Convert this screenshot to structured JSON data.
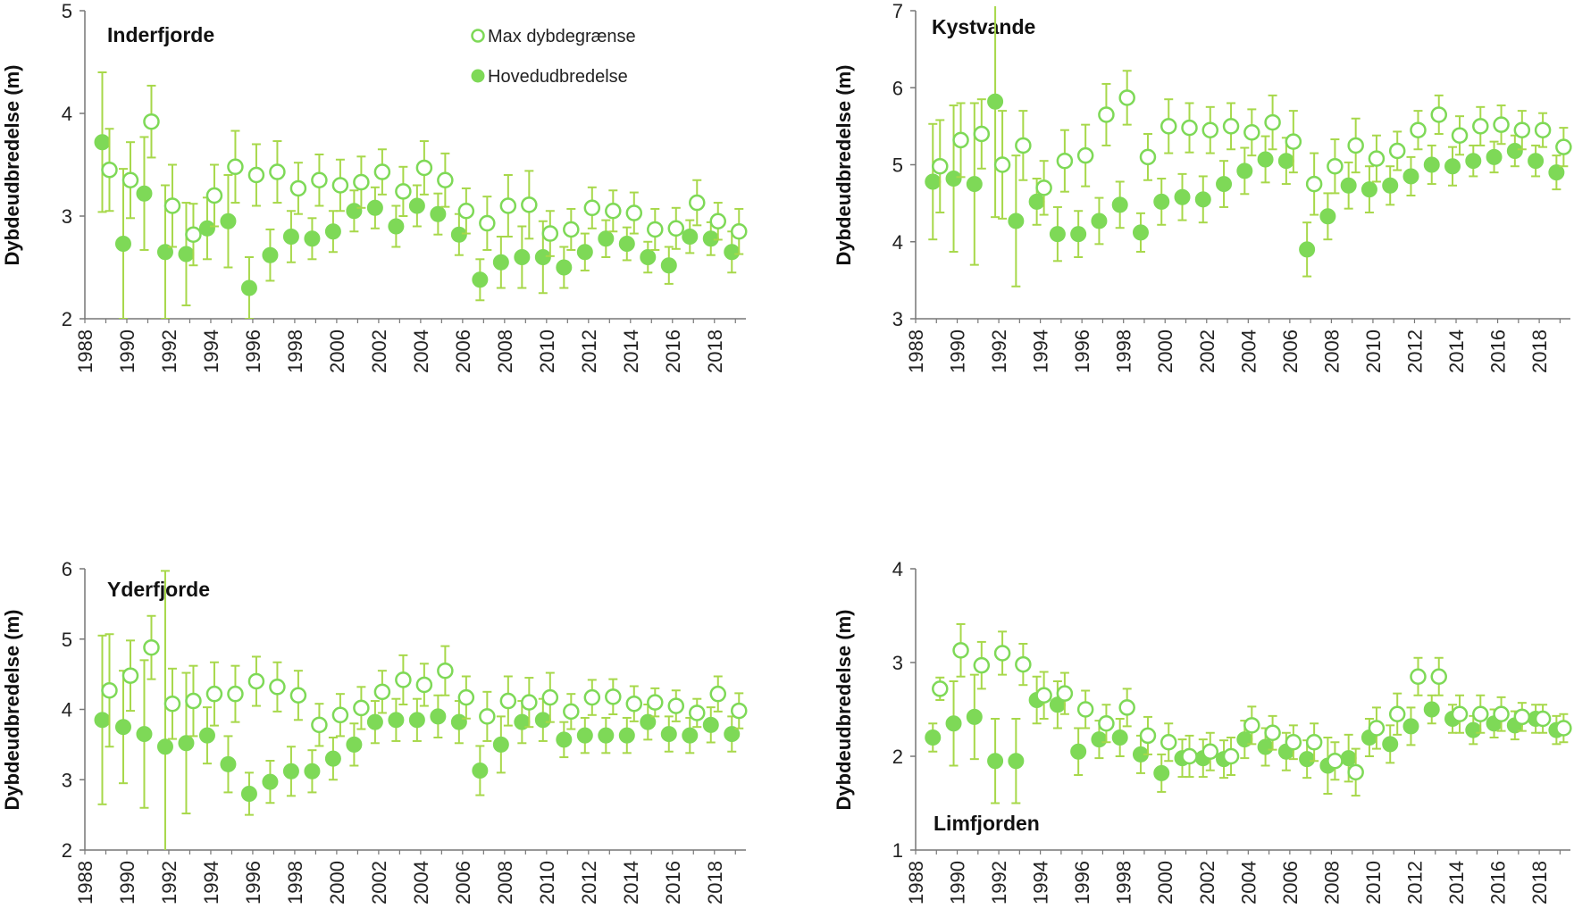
{
  "colors": {
    "marker": "#7ED957",
    "error_bar": "#A7D84A",
    "axis": "#777777",
    "text": "#111111"
  },
  "legend": {
    "position": "top-right of first panel",
    "entries": [
      {
        "key": "max",
        "label": "Max dybdegrænse",
        "marker": "open-circle"
      },
      {
        "key": "main",
        "label": "Hovedudbredelse",
        "marker": "filled-circle"
      }
    ]
  },
  "chart_data": [
    {
      "type": "scatter",
      "title": "Inderfjorde",
      "ylabel": "Dybdeudbredelse (m)",
      "xlim": [
        1988,
        2019.5
      ],
      "ylim": [
        2,
        5
      ],
      "yticks": [
        2,
        3,
        4,
        5
      ],
      "xticks": [
        1988,
        1990,
        1992,
        1994,
        1996,
        1998,
        2000,
        2002,
        2004,
        2006,
        2008,
        2010,
        2012,
        2014,
        2016,
        2018
      ],
      "x": [
        1989,
        1990,
        1991,
        1992,
        1993,
        1994,
        1995,
        1996,
        1997,
        1998,
        1999,
        2000,
        2001,
        2002,
        2003,
        2004,
        2005,
        2006,
        2007,
        2008,
        2009,
        2010,
        2011,
        2012,
        2013,
        2014,
        2015,
        2016,
        2017,
        2018,
        2019
      ],
      "series": [
        {
          "key": "max",
          "marker": "open-circle",
          "values": [
            3.45,
            3.35,
            3.92,
            3.1,
            2.82,
            3.2,
            3.48,
            3.4,
            3.43,
            3.27,
            3.35,
            3.3,
            3.33,
            3.43,
            3.24,
            3.47,
            3.35,
            3.05,
            2.93,
            3.1,
            3.11,
            2.83,
            2.87,
            3.08,
            3.05,
            3.03,
            2.87,
            2.88,
            3.13,
            2.95,
            2.85
          ],
          "error": [
            0.4,
            0.37,
            0.35,
            0.4,
            0.3,
            0.3,
            0.35,
            0.3,
            0.3,
            0.25,
            0.25,
            0.25,
            0.25,
            0.22,
            0.24,
            0.26,
            0.26,
            0.22,
            0.26,
            0.3,
            0.33,
            0.22,
            0.2,
            0.2,
            0.2,
            0.2,
            0.2,
            0.2,
            0.22,
            0.18,
            0.22
          ]
        },
        {
          "key": "main",
          "marker": "filled-circle",
          "values": [
            3.72,
            2.73,
            3.22,
            2.65,
            2.63,
            2.88,
            2.95,
            2.3,
            2.62,
            2.8,
            2.78,
            2.85,
            3.05,
            3.08,
            2.9,
            3.1,
            3.02,
            2.82,
            2.38,
            2.55,
            2.6,
            2.6,
            2.5,
            2.65,
            2.78,
            2.73,
            2.6,
            2.52,
            2.8,
            2.78,
            2.65
          ],
          "error": [
            0.68,
            0.73,
            0.55,
            0.65,
            0.5,
            0.3,
            0.45,
            0.3,
            0.25,
            0.25,
            0.2,
            0.2,
            0.2,
            0.2,
            0.2,
            0.2,
            0.2,
            0.2,
            0.2,
            0.25,
            0.3,
            0.35,
            0.2,
            0.18,
            0.18,
            0.16,
            0.15,
            0.18,
            0.16,
            0.16,
            0.2
          ]
        }
      ]
    },
    {
      "type": "scatter",
      "title": "Kystvande",
      "ylabel": "Dybdeudbredelse (m)",
      "xlim": [
        1988,
        2019.5
      ],
      "ylim": [
        3,
        7
      ],
      "yticks": [
        3,
        4,
        5,
        6,
        7
      ],
      "xticks": [
        1988,
        1990,
        1992,
        1994,
        1996,
        1998,
        2000,
        2002,
        2004,
        2006,
        2008,
        2010,
        2012,
        2014,
        2016,
        2018
      ],
      "x": [
        1989,
        1990,
        1991,
        1992,
        1993,
        1994,
        1995,
        1996,
        1997,
        1998,
        1999,
        2000,
        2001,
        2002,
        2003,
        2004,
        2005,
        2006,
        2007,
        2008,
        2009,
        2010,
        2011,
        2012,
        2013,
        2014,
        2015,
        2016,
        2017,
        2018,
        2019
      ],
      "series": [
        {
          "key": "max",
          "marker": "open-circle",
          "values": [
            4.98,
            5.32,
            5.4,
            5.0,
            5.25,
            4.7,
            5.05,
            5.12,
            5.65,
            5.87,
            5.1,
            5.5,
            5.48,
            5.45,
            5.5,
            5.42,
            5.55,
            5.3,
            4.75,
            4.98,
            5.25,
            5.08,
            5.18,
            5.45,
            5.65,
            5.38,
            5.5,
            5.52,
            5.45,
            5.45,
            5.23
          ],
          "error": [
            0.6,
            0.48,
            0.45,
            0.7,
            0.45,
            0.35,
            0.4,
            0.4,
            0.4,
            0.35,
            0.3,
            0.35,
            0.32,
            0.3,
            0.3,
            0.3,
            0.35,
            0.4,
            0.4,
            0.35,
            0.35,
            0.3,
            0.25,
            0.25,
            0.25,
            0.25,
            0.25,
            0.25,
            0.25,
            0.22,
            0.25
          ]
        },
        {
          "key": "main",
          "marker": "filled-circle",
          "values": [
            4.78,
            4.82,
            4.75,
            5.82,
            4.27,
            4.52,
            4.1,
            4.1,
            4.27,
            4.48,
            4.12,
            4.52,
            4.58,
            4.55,
            4.75,
            4.92,
            5.07,
            5.05,
            3.9,
            4.33,
            4.73,
            4.68,
            4.73,
            4.85,
            5.0,
            4.98,
            5.05,
            5.1,
            5.18,
            5.05,
            4.9
          ],
          "error": [
            0.75,
            0.95,
            1.05,
            1.5,
            0.85,
            0.3,
            0.35,
            0.3,
            0.3,
            0.3,
            0.25,
            0.3,
            0.3,
            0.3,
            0.3,
            0.3,
            0.3,
            0.3,
            0.35,
            0.3,
            0.3,
            0.3,
            0.25,
            0.25,
            0.25,
            0.25,
            0.2,
            0.2,
            0.2,
            0.2,
            0.22
          ]
        }
      ]
    },
    {
      "type": "scatter",
      "title": "Yderfjorde",
      "ylabel": "Dybdeudbredelse (m)",
      "xlim": [
        1988,
        2019.5
      ],
      "ylim": [
        2,
        6
      ],
      "yticks": [
        2,
        3,
        4,
        5,
        6
      ],
      "xticks": [
        1988,
        1990,
        1992,
        1994,
        1996,
        1998,
        2000,
        2002,
        2004,
        2006,
        2008,
        2010,
        2012,
        2014,
        2016,
        2018
      ],
      "x": [
        1989,
        1990,
        1991,
        1992,
        1993,
        1994,
        1995,
        1996,
        1997,
        1998,
        1999,
        2000,
        2001,
        2002,
        2003,
        2004,
        2005,
        2006,
        2007,
        2008,
        2009,
        2010,
        2011,
        2012,
        2013,
        2014,
        2015,
        2016,
        2017,
        2018,
        2019
      ],
      "series": [
        {
          "key": "max",
          "marker": "open-circle",
          "values": [
            4.27,
            4.48,
            4.88,
            4.08,
            4.12,
            4.22,
            4.22,
            4.4,
            4.32,
            4.2,
            3.78,
            3.92,
            4.02,
            4.25,
            4.42,
            4.35,
            4.55,
            4.17,
            3.9,
            4.12,
            4.1,
            4.17,
            3.97,
            4.17,
            4.18,
            4.08,
            4.1,
            4.05,
            3.95,
            4.22,
            3.98
          ],
          "error": [
            0.8,
            0.5,
            0.45,
            0.5,
            0.5,
            0.45,
            0.4,
            0.35,
            0.35,
            0.35,
            0.3,
            0.3,
            0.3,
            0.3,
            0.35,
            0.3,
            0.35,
            0.3,
            0.35,
            0.35,
            0.35,
            0.35,
            0.25,
            0.25,
            0.25,
            0.25,
            0.2,
            0.22,
            0.2,
            0.25,
            0.25
          ]
        },
        {
          "key": "main",
          "marker": "filled-circle",
          "values": [
            3.85,
            3.75,
            3.65,
            3.47,
            3.52,
            3.63,
            3.22,
            2.8,
            2.97,
            3.12,
            3.12,
            3.3,
            3.5,
            3.82,
            3.85,
            3.85,
            3.9,
            3.82,
            3.13,
            3.5,
            3.82,
            3.85,
            3.57,
            3.63,
            3.63,
            3.63,
            3.82,
            3.65,
            3.63,
            3.78,
            3.65
          ],
          "error": [
            1.2,
            0.8,
            1.05,
            2.5,
            1.0,
            0.4,
            0.4,
            0.3,
            0.3,
            0.35,
            0.3,
            0.3,
            0.3,
            0.3,
            0.3,
            0.3,
            0.3,
            0.3,
            0.35,
            0.4,
            0.3,
            0.3,
            0.25,
            0.25,
            0.25,
            0.25,
            0.25,
            0.25,
            0.25,
            0.25,
            0.25
          ]
        }
      ]
    },
    {
      "type": "scatter",
      "title": "Limfjorden",
      "ylabel": "Dybdeudbredelse (m)",
      "xlim": [
        1988,
        2019.5
      ],
      "ylim": [
        1,
        4
      ],
      "yticks": [
        1,
        2,
        3,
        4
      ],
      "xticks": [
        1988,
        1990,
        1992,
        1994,
        1996,
        1998,
        2000,
        2002,
        2004,
        2006,
        2008,
        2010,
        2012,
        2014,
        2016,
        2018
      ],
      "x": [
        1989,
        1990,
        1991,
        1992,
        1993,
        1994,
        1995,
        1996,
        1997,
        1998,
        1999,
        2000,
        2001,
        2002,
        2003,
        2004,
        2005,
        2006,
        2007,
        2008,
        2009,
        2010,
        2011,
        2012,
        2013,
        2014,
        2015,
        2016,
        2017,
        2018,
        2019
      ],
      "series": [
        {
          "key": "max",
          "marker": "open-circle",
          "values": [
            2.72,
            3.13,
            2.97,
            3.1,
            2.98,
            2.65,
            2.67,
            2.5,
            2.35,
            2.52,
            2.22,
            2.15,
            2.0,
            2.05,
            2.0,
            2.33,
            2.25,
            2.15,
            2.15,
            1.95,
            1.83,
            2.3,
            2.45,
            2.85,
            2.85,
            2.45,
            2.45,
            2.45,
            2.42,
            2.4,
            2.3
          ],
          "error": [
            0.12,
            0.28,
            0.25,
            0.23,
            0.22,
            0.25,
            0.22,
            0.2,
            0.2,
            0.2,
            0.2,
            0.2,
            0.22,
            0.2,
            0.2,
            0.2,
            0.18,
            0.18,
            0.2,
            0.2,
            0.25,
            0.22,
            0.22,
            0.2,
            0.2,
            0.2,
            0.2,
            0.18,
            0.15,
            0.15,
            0.15
          ]
        },
        {
          "key": "main",
          "marker": "filled-circle",
          "values": [
            2.2,
            2.35,
            2.42,
            1.95,
            1.95,
            2.6,
            2.55,
            2.05,
            2.18,
            2.2,
            2.02,
            1.82,
            1.98,
            1.98,
            1.97,
            2.18,
            2.1,
            2.05,
            1.97,
            1.9,
            1.98,
            2.2,
            2.13,
            2.32,
            2.5,
            2.4,
            2.28,
            2.35,
            2.33,
            2.4,
            2.28
          ],
          "error": [
            0.15,
            0.45,
            0.45,
            0.45,
            0.45,
            0.25,
            0.25,
            0.25,
            0.2,
            0.2,
            0.2,
            0.2,
            0.2,
            0.2,
            0.2,
            0.2,
            0.2,
            0.2,
            0.2,
            0.3,
            0.25,
            0.2,
            0.2,
            0.2,
            0.15,
            0.15,
            0.15,
            0.15,
            0.15,
            0.15,
            0.15
          ]
        }
      ]
    }
  ]
}
